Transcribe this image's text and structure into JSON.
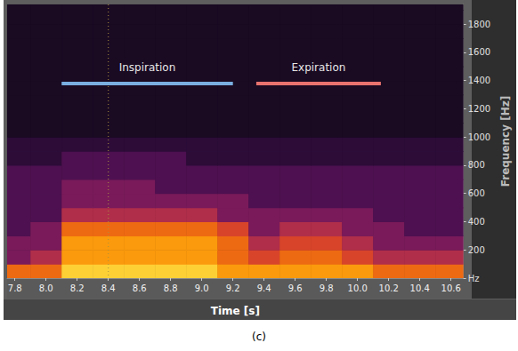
{
  "chart_data": {
    "type": "heatmap",
    "title": "(c)",
    "x_label": "Time [s]",
    "y_label": "Frequency [Hz]",
    "xlim": [
      7.75,
      10.68
    ],
    "ylim": [
      0,
      1940
    ],
    "xticks": [
      7.8,
      {
        "value": 8,
        "label": "8.0"
      },
      8.2,
      8.4,
      8.6,
      8.8,
      {
        "value": 9,
        "label": "9.0"
      },
      9.2,
      9.4,
      9.6,
      9.8,
      {
        "value": 10,
        "label": "10.0"
      },
      10.2,
      10.4,
      10.6
    ],
    "yticks": [
      {
        "value": 0,
        "label": "Hz"
      },
      200,
      400,
      600,
      800,
      1000,
      1200,
      1400,
      1600,
      1800
    ],
    "grid": false,
    "x_bins": [
      7.7,
      7.9,
      8.1,
      8.3,
      8.5,
      8.7,
      8.9,
      9.1,
      9.3,
      9.5,
      9.7,
      9.9,
      10.1,
      10.3,
      10.5,
      10.7
    ],
    "y_bins": [
      0,
      100,
      200,
      300,
      400,
      500,
      600,
      700,
      800,
      900,
      1000,
      1100,
      1200,
      1300,
      1400,
      1500,
      1600,
      1700,
      1800,
      1900,
      2000
    ],
    "zlim": [
      0,
      10
    ],
    "cells": [
      [
        7,
        7,
        9,
        9,
        9,
        9,
        9,
        8,
        8,
        8,
        8,
        8,
        7,
        7,
        7
      ],
      [
        4,
        5,
        8,
        8,
        8,
        8,
        8,
        7,
        6,
        7,
        7,
        6,
        5,
        5,
        5
      ],
      [
        4,
        4,
        8,
        8,
        8,
        8,
        8,
        7,
        5,
        6,
        6,
        5,
        4,
        4,
        4
      ],
      [
        3,
        4,
        7,
        7,
        7,
        7,
        7,
        6,
        4,
        5,
        5,
        4,
        4,
        3,
        3
      ],
      [
        3,
        3,
        5,
        5,
        5,
        5,
        5,
        4,
        4,
        4,
        4,
        4,
        3,
        3,
        3
      ],
      [
        3,
        3,
        4,
        4,
        4,
        4,
        4,
        4,
        3,
        3,
        3,
        3,
        3,
        3,
        3
      ],
      [
        3,
        3,
        4,
        4,
        4,
        3,
        3,
        3,
        3,
        3,
        3,
        3,
        3,
        3,
        3
      ],
      [
        3,
        3,
        3,
        3,
        3,
        3,
        3,
        3,
        3,
        3,
        3,
        3,
        3,
        3,
        3
      ],
      [
        2,
        2,
        3,
        3,
        3,
        3,
        2,
        2,
        2,
        2,
        2,
        2,
        2,
        2,
        2
      ],
      [
        2,
        2,
        2,
        2,
        2,
        2,
        2,
        2,
        2,
        2,
        2,
        2,
        2,
        2,
        2
      ],
      [
        1,
        1,
        1,
        1,
        1,
        1,
        1,
        1,
        1,
        1,
        1,
        1,
        1,
        1,
        1
      ],
      [
        1,
        1,
        1,
        1,
        1,
        1,
        1,
        1,
        1,
        1,
        1,
        1,
        1,
        1,
        1
      ],
      [
        1,
        1,
        1,
        1,
        1,
        1,
        1,
        1,
        1,
        1,
        1,
        1,
        1,
        1,
        1
      ],
      [
        1,
        1,
        1,
        1,
        1,
        1,
        1,
        1,
        1,
        1,
        1,
        1,
        1,
        1,
        1
      ],
      [
        1,
        1,
        1,
        1,
        1,
        1,
        1,
        1,
        1,
        1,
        1,
        1,
        1,
        1,
        1
      ],
      [
        1,
        1,
        1,
        1,
        1,
        1,
        1,
        1,
        1,
        1,
        1,
        1,
        1,
        1,
        1
      ],
      [
        1,
        1,
        1,
        1,
        1,
        1,
        1,
        1,
        1,
        1,
        1,
        1,
        1,
        1,
        1
      ],
      [
        1,
        1,
        1,
        1,
        1,
        1,
        1,
        1,
        1,
        1,
        1,
        1,
        1,
        1,
        1
      ],
      [
        1,
        1,
        1,
        1,
        1,
        1,
        1,
        1,
        1,
        1,
        1,
        1,
        1,
        1,
        1
      ],
      [
        1,
        1,
        1,
        1,
        1,
        1,
        1,
        1,
        1,
        1,
        1,
        1,
        1,
        1,
        1
      ]
    ],
    "annotations": [
      {
        "text": "Inspiration",
        "x": [
          8.1,
          9.2
        ],
        "y": 1380,
        "color": "#7aaee0"
      },
      {
        "text": "Expiration",
        "x": [
          9.35,
          10.15
        ],
        "y": 1380,
        "color": "#e8736e"
      }
    ],
    "vlines": [
      {
        "x": 8.4,
        "color": "#a89040",
        "line_style": "dotted"
      }
    ]
  }
}
